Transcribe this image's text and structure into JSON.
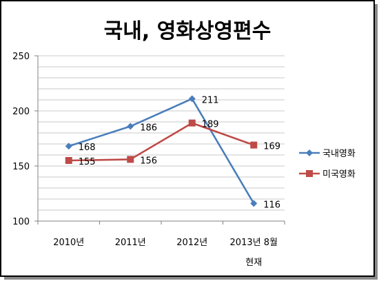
{
  "chart_data": {
    "type": "line",
    "title": "국내, 영화상영편수",
    "categories": [
      "2010년",
      "2011년",
      "2012년",
      "2013년 8월 현재"
    ],
    "category_lines": [
      [
        "2010년"
      ],
      [
        "2011년"
      ],
      [
        "2012년"
      ],
      [
        "2013년 8월",
        "현재"
      ]
    ],
    "ylim": [
      100,
      250
    ],
    "yticks": [
      100,
      150,
      200,
      250
    ],
    "ytick_labels": [
      "100",
      "150",
      "200",
      "250"
    ],
    "grid": true,
    "legend_position": "right",
    "series": [
      {
        "name": "국내영화",
        "values": [
          168,
          186,
          211,
          116
        ],
        "labels": [
          "168",
          "186",
          "211",
          "116"
        ],
        "color": "#4A7EBB",
        "marker": "diamond"
      },
      {
        "name": "미국영화",
        "values": [
          155,
          156,
          189,
          169
        ],
        "labels": [
          "155",
          "156",
          "189",
          "169"
        ],
        "color": "#BE4B48",
        "marker": "square"
      }
    ]
  }
}
